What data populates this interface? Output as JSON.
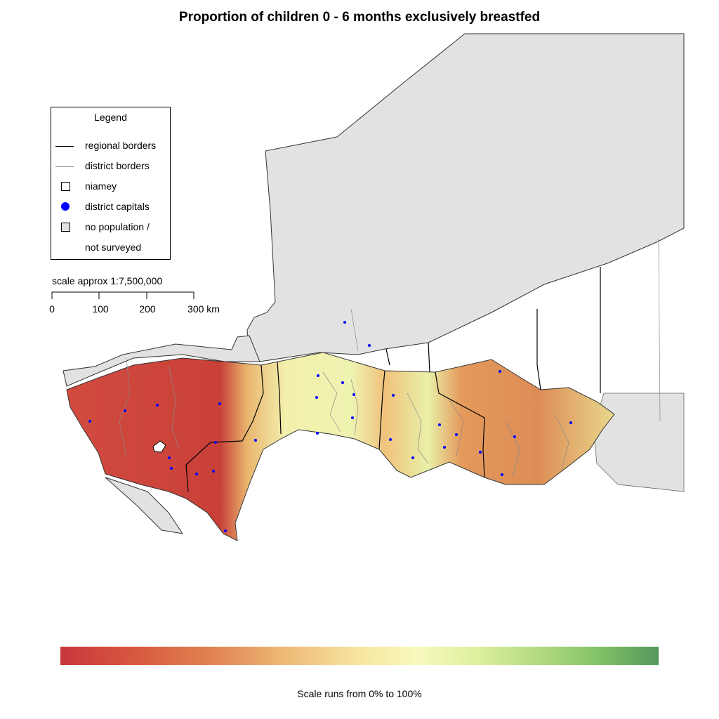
{
  "title": "Proportion of children 0 - 6 months exclusively breastfed",
  "legend": {
    "title": "Legend",
    "items": [
      {
        "symbol": "thick-line",
        "label": "regional borders"
      },
      {
        "symbol": "thin-line",
        "label": "district borders"
      },
      {
        "symbol": "open-square",
        "label": "niamey"
      },
      {
        "symbol": "blue-dot",
        "label": "district capitals"
      },
      {
        "symbol": "grey-square",
        "label": "no population /"
      },
      {
        "symbol": "none",
        "label": "not surveyed"
      }
    ]
  },
  "scale": {
    "title": "scale approx 1:7,500,000",
    "ticks": [
      "0",
      "100",
      "200",
      "300 km"
    ]
  },
  "colorbar": {
    "caption": "Scale runs from 0% to 100%",
    "colors": {
      "low": "#c8373c",
      "mid": "#f7f9bd",
      "high": "#55985a"
    }
  },
  "colors": {
    "no_population": "#e1e1e1",
    "district_capital": "#0000ff",
    "regional_border": "#000000",
    "district_border": "#8a8a8a"
  }
}
